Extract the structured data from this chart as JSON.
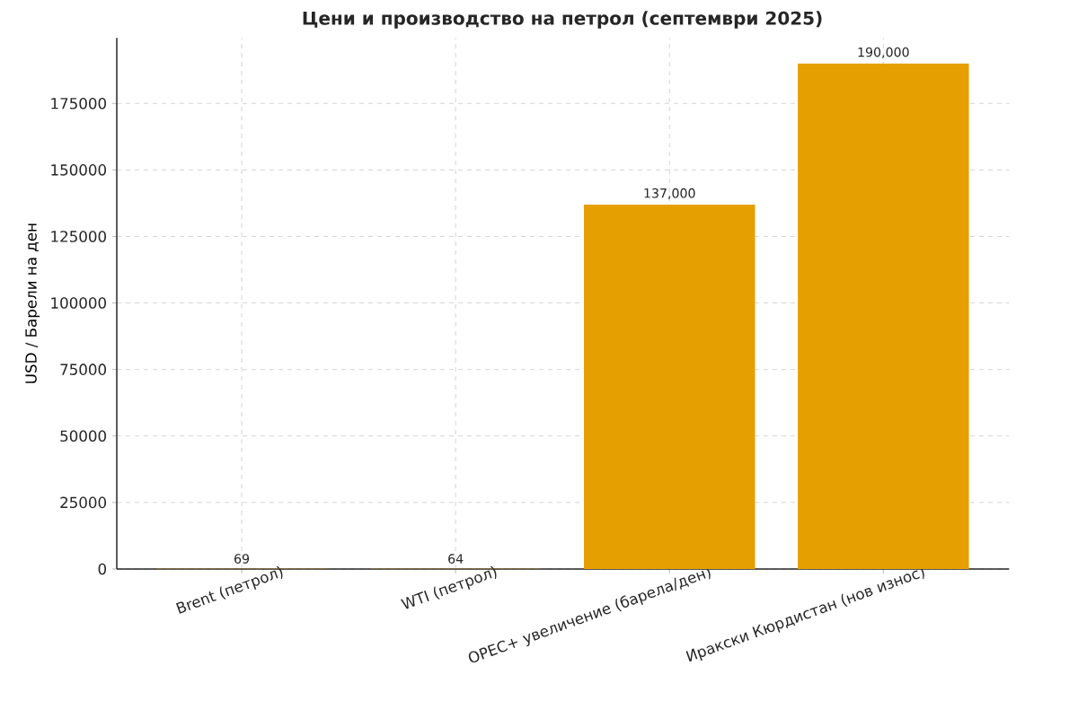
{
  "chart_data": {
    "type": "bar",
    "title": "Цени и производство на петрол (септември 2025)",
    "ylabel": "USD / Барели на ден",
    "categories": [
      "Brent (петрол)",
      "WTI (петрол)",
      "OPEC+ увеличение (барела/ден)",
      "Иракски Кюрдистан (нов износ)"
    ],
    "values": [
      69,
      64,
      137000,
      190000
    ],
    "value_labels": [
      "69",
      "64",
      "137,000",
      "190,000"
    ],
    "color": "#e69f00",
    "ylim": [
      0,
      199600
    ],
    "yticks": [
      0,
      25000,
      50000,
      75000,
      100000,
      125000,
      150000,
      175000
    ],
    "grid": true
  }
}
